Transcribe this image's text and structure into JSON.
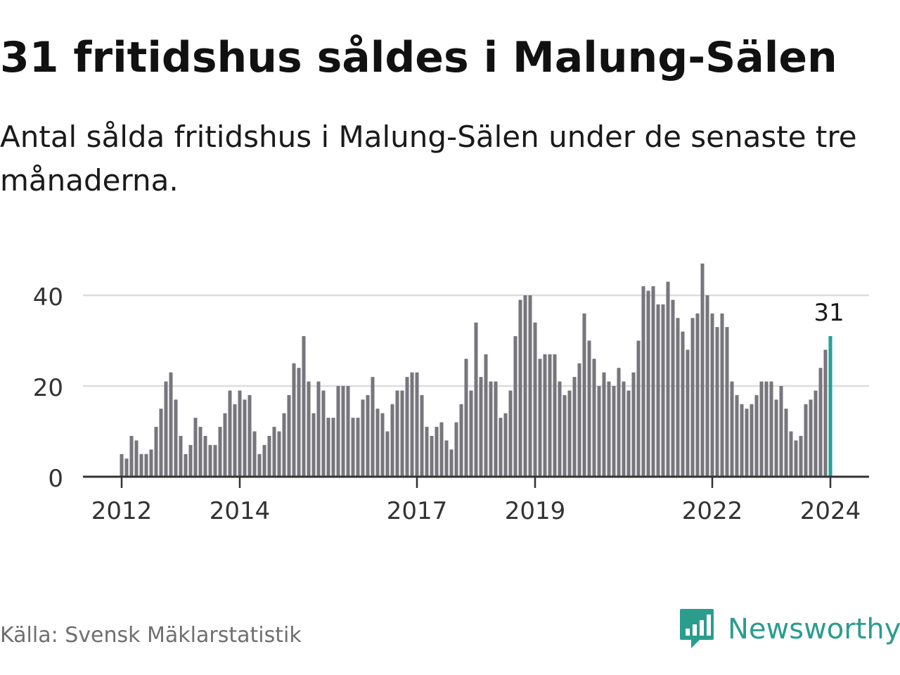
{
  "header": {
    "title": "31 fritidshus såldes i Malung-Sälen",
    "subtitle": "Antal sålda fritidshus i Malung-Sälen under de senaste tre månaderna."
  },
  "footer": {
    "source": "Källa: Svensk Mäklarstatistik",
    "brand": "Newsworthy",
    "brand_icon": "newsworthy-logo-icon"
  },
  "colors": {
    "bar": "#77767c",
    "highlight": "#1fa29a",
    "grid": "#dddddd",
    "axis": "#333333",
    "brand": "#2a9d8f"
  },
  "chart_data": {
    "type": "bar",
    "title": "",
    "xlabel": "",
    "ylabel": "",
    "ylim": [
      0,
      48
    ],
    "yticks": [
      "0",
      "20",
      "40"
    ],
    "xticks": [
      "2012",
      "2014",
      "2017",
      "2019",
      "2022",
      "2024"
    ],
    "x_start": "2012-01",
    "x_end": "2024-01",
    "grid": true,
    "highlight_label": "31",
    "values": [
      5,
      4,
      9,
      8,
      5,
      5,
      6,
      11,
      15,
      21,
      23,
      17,
      9,
      5,
      7,
      13,
      11,
      9,
      7,
      7,
      11,
      14,
      19,
      16,
      19,
      17,
      18,
      10,
      5,
      7,
      9,
      11,
      10,
      14,
      18,
      25,
      24,
      31,
      21,
      14,
      21,
      19,
      13,
      13,
      20,
      20,
      20,
      13,
      13,
      17,
      18,
      22,
      15,
      14,
      10,
      16,
      19,
      19,
      22,
      23,
      23,
      18,
      11,
      9,
      11,
      12,
      8,
      6,
      12,
      16,
      26,
      19,
      34,
      22,
      27,
      21,
      21,
      13,
      14,
      19,
      31,
      39,
      40,
      40,
      34,
      26,
      27,
      27,
      27,
      21,
      18,
      19,
      22,
      25,
      36,
      30,
      26,
      20,
      23,
      21,
      20,
      24,
      21,
      19,
      23,
      30,
      42,
      41,
      42,
      38,
      38,
      43,
      39,
      35,
      32,
      28,
      35,
      36,
      47,
      40,
      36,
      33,
      36,
      33,
      21,
      18,
      16,
      15,
      16,
      18,
      21,
      21,
      21,
      17,
      20,
      15,
      10,
      8,
      9,
      16,
      17,
      19,
      24,
      28,
      31
    ]
  }
}
